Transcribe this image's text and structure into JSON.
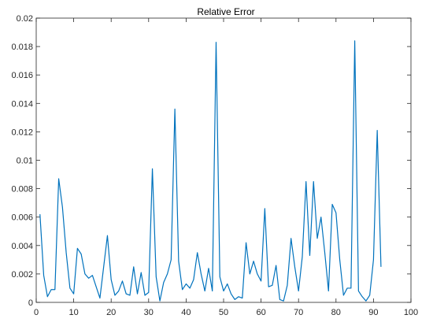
{
  "chart_data": {
    "type": "line",
    "title": "Relative Error",
    "xlabel": "",
    "ylabel": "",
    "xlim": [
      0,
      100
    ],
    "ylim": [
      0,
      0.02
    ],
    "xticks": [
      0,
      10,
      20,
      30,
      40,
      50,
      60,
      70,
      80,
      90,
      100
    ],
    "xtick_labels": [
      "0",
      "10",
      "20",
      "30",
      "40",
      "50",
      "60",
      "70",
      "80",
      "90",
      "100"
    ],
    "yticks": [
      0,
      0.002,
      0.004,
      0.006,
      0.008,
      0.01,
      0.012,
      0.014,
      0.016,
      0.018,
      0.02
    ],
    "ytick_labels": [
      "0",
      "0.002",
      "0.004",
      "0.006",
      "0.008",
      "0.01",
      "0.012",
      "0.014",
      "0.016",
      "0.018",
      "0.02"
    ],
    "grid": false,
    "series": [
      {
        "color": "#0072BD",
        "x": [
          1,
          2,
          3,
          4,
          5,
          6,
          7,
          8,
          9,
          10,
          11,
          12,
          13,
          14,
          15,
          16,
          17,
          18,
          19,
          20,
          21,
          22,
          23,
          24,
          25,
          26,
          27,
          28,
          29,
          30,
          31,
          32,
          33,
          34,
          35,
          36,
          37,
          38,
          39,
          40,
          41,
          42,
          43,
          44,
          45,
          46,
          47,
          48,
          49,
          50,
          51,
          52,
          53,
          54,
          55,
          56,
          57,
          58,
          59,
          60,
          61,
          62,
          63,
          64,
          65,
          66,
          67,
          68,
          69,
          70,
          71,
          72,
          73,
          74,
          75,
          76,
          77,
          78,
          79,
          80,
          81,
          82,
          83,
          84,
          85,
          86,
          87,
          88,
          89,
          90,
          91,
          92
        ],
        "y": [
          0.0062,
          0.0019,
          0.0004,
          0.0009,
          0.0009,
          0.0087,
          0.0067,
          0.0035,
          0.001,
          0.0006,
          0.0038,
          0.0034,
          0.002,
          0.0017,
          0.0019,
          0.0011,
          0.0003,
          0.0025,
          0.0047,
          0.0016,
          0.0005,
          0.0008,
          0.0015,
          0.0006,
          0.0005,
          0.0025,
          0.0006,
          0.0021,
          0.0005,
          0.0007,
          0.0094,
          0.0018,
          0.0001,
          0.0014,
          0.002,
          0.003,
          0.0136,
          0.0029,
          0.0009,
          0.0013,
          0.001,
          0.0016,
          0.0035,
          0.002,
          0.0008,
          0.0024,
          0.0008,
          0.0183,
          0.0018,
          0.0008,
          0.0013,
          0.0006,
          0.0002,
          0.0004,
          0.0003,
          0.0042,
          0.002,
          0.0029,
          0.002,
          0.0015,
          0.0066,
          0.0011,
          0.0012,
          0.0026,
          0.0002,
          0.0001,
          0.0012,
          0.0045,
          0.0025,
          0.0008,
          0.0032,
          0.0085,
          0.0033,
          0.0085,
          0.0045,
          0.006,
          0.0035,
          0.0008,
          0.0069,
          0.0063,
          0.003,
          0.0005,
          0.001,
          0.001,
          0.0184,
          0.0008,
          0.0004,
          0.0001,
          0.0005,
          0.003,
          0.0121,
          0.0025
        ]
      }
    ]
  }
}
